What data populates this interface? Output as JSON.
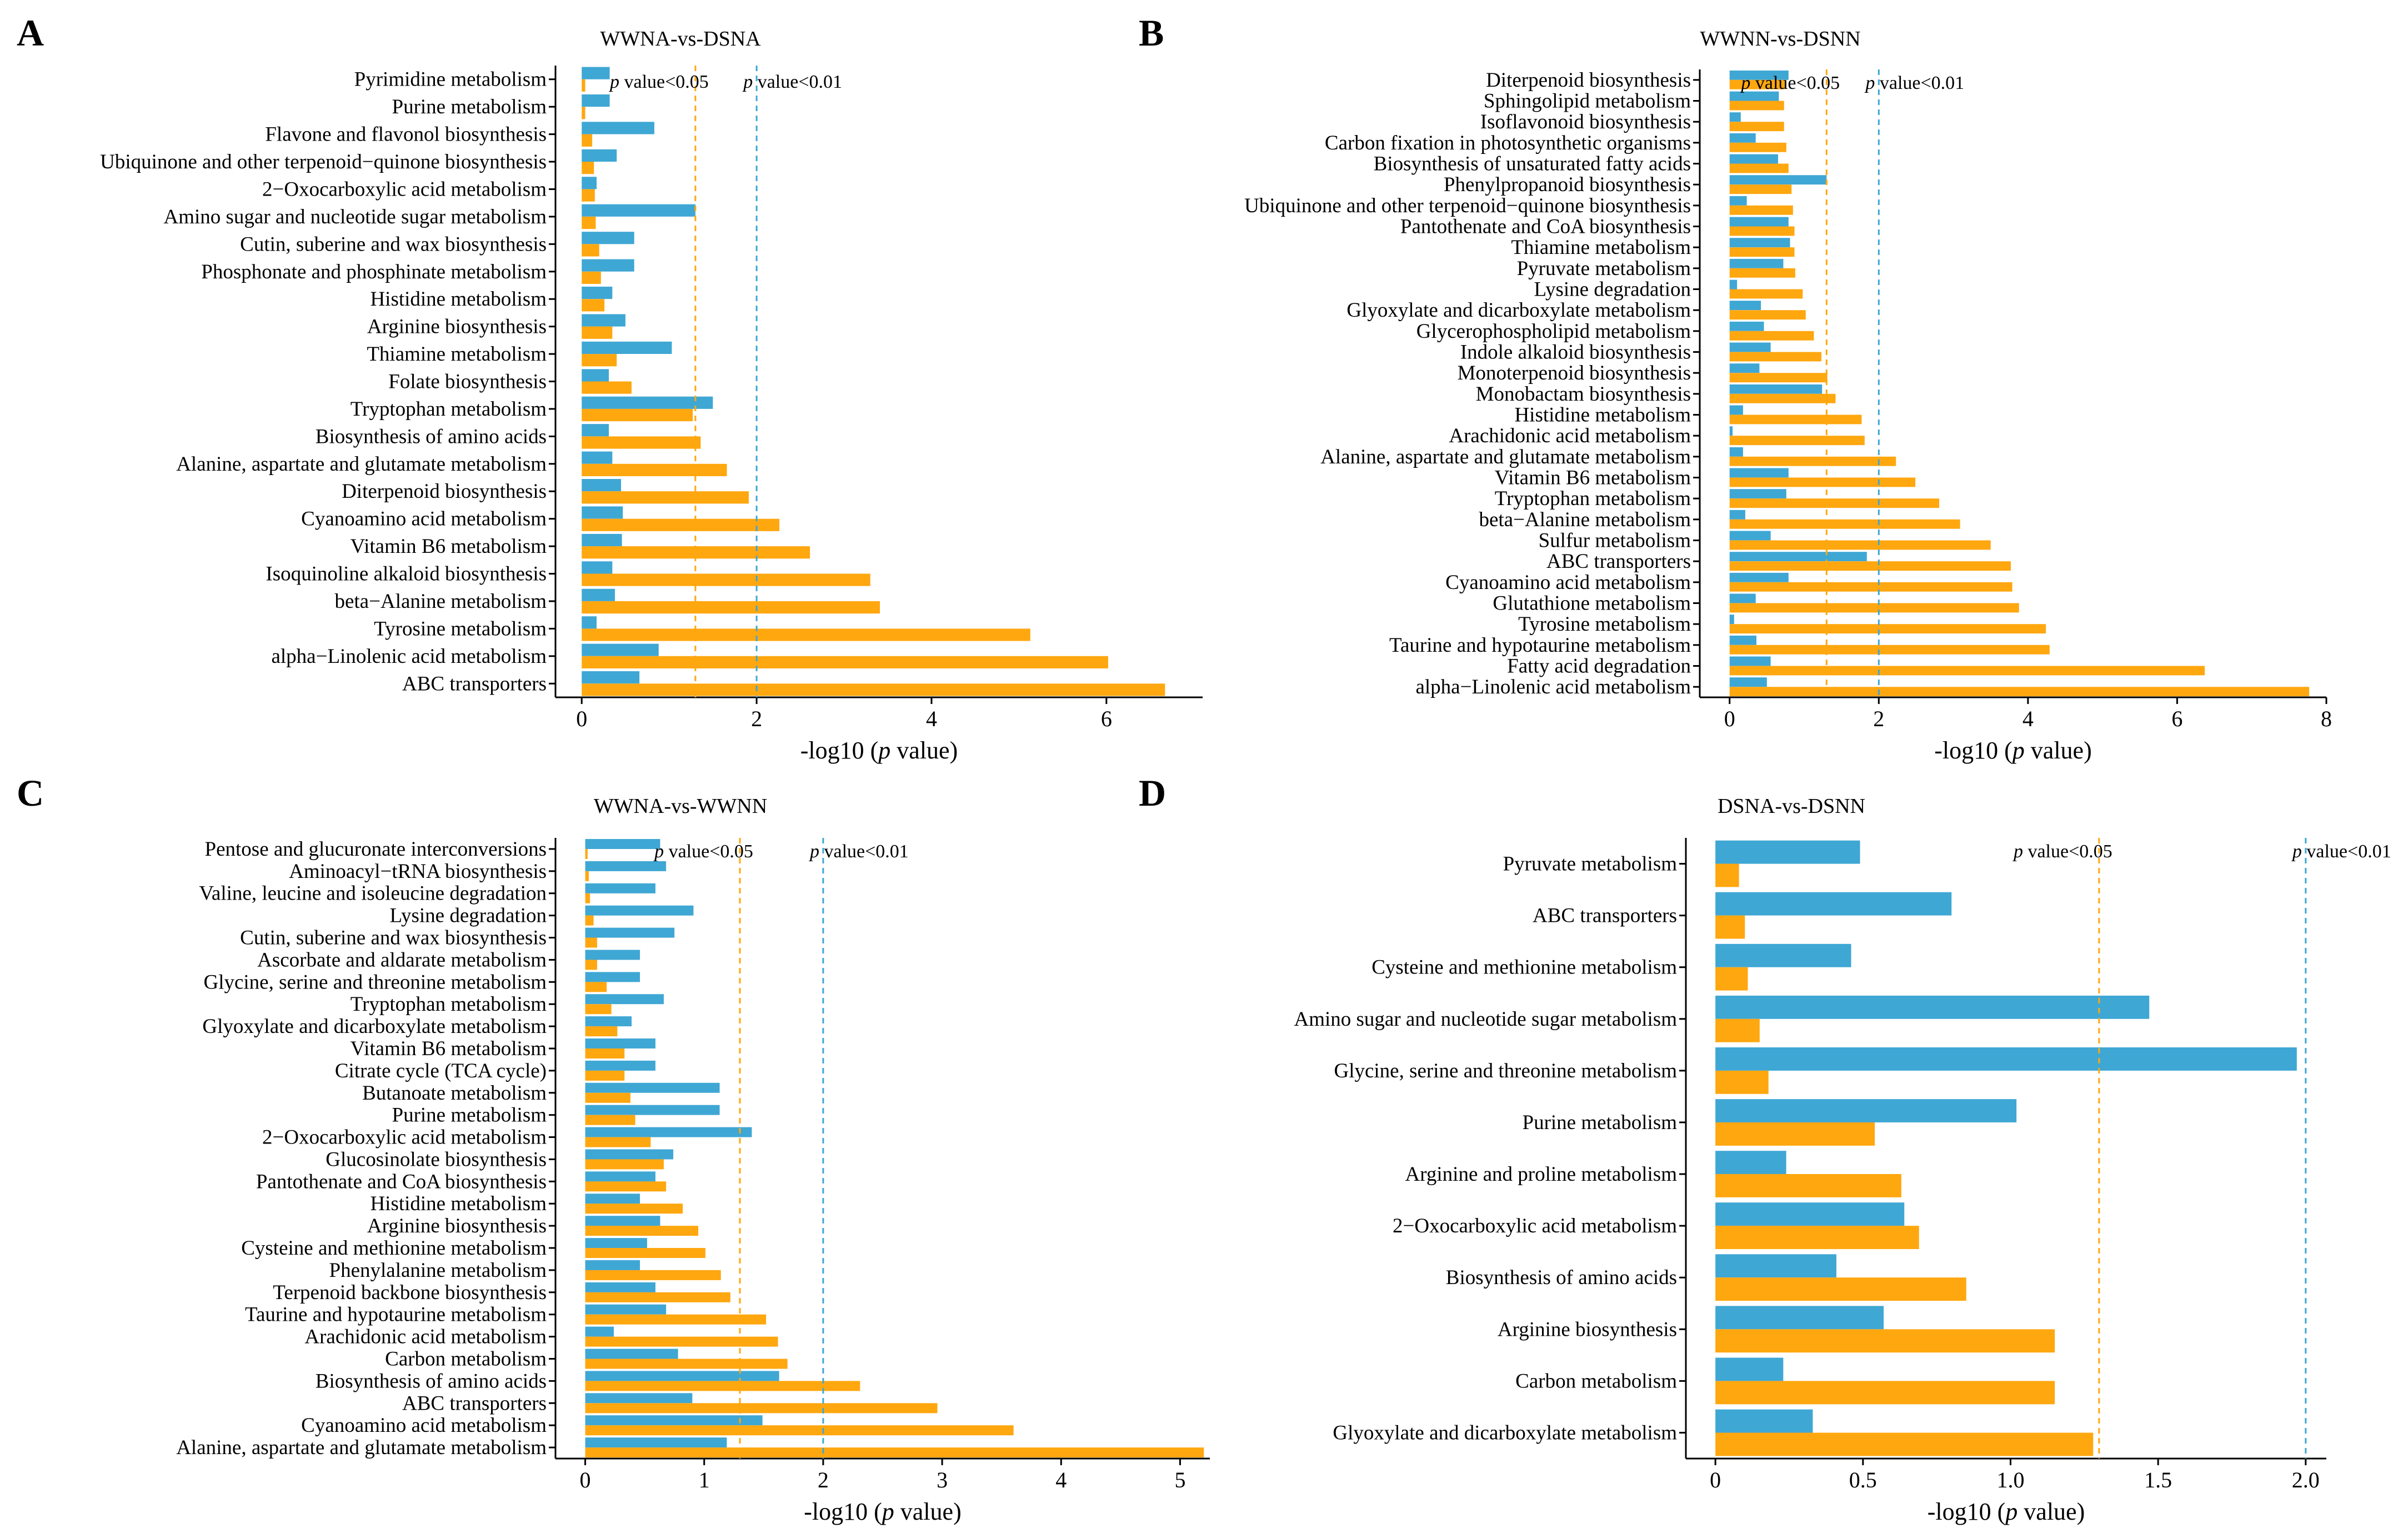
{
  "colors": {
    "blue": "#3fa7d4",
    "orange": "#ffa70f",
    "axis": "#000000"
  },
  "chart_data": [
    {
      "panel": "A",
      "type": "bar",
      "orientation": "horizontal",
      "title": "WWNA-vs-DSNA",
      "xlabel": "-log10 (p value)",
      "xlabel_prefix": "-log10 (",
      "xlabel_italic": "p",
      "xlabel_suffix": " value)",
      "xlim": [
        -0.3,
        7.1
      ],
      "xticks": [
        0,
        2,
        4,
        6
      ],
      "xtick_labels": [
        "0",
        "2",
        "4",
        "6"
      ],
      "ref_lines": [
        {
          "value": 1.3,
          "color": "#ffa70f",
          "label_p": "p",
          "label_rest": " value<0.05"
        },
        {
          "value": 2.0,
          "color": "#3fa7d4",
          "label_p": "p",
          "label_rest": " value<0.01"
        }
      ],
      "categories": [
        "Pyrimidine metabolism",
        "Purine metabolism",
        "Flavone and flavonol biosynthesis",
        "Ubiquinone and other terpenoid−quinone biosynthesis",
        "2−Oxocarboxylic acid metabolism",
        "Amino sugar and nucleotide sugar metabolism",
        "Cutin, suberine and wax biosynthesis",
        "Phosphonate and phosphinate metabolism",
        "Histidine metabolism",
        "Arginine biosynthesis",
        "Thiamine metabolism",
        "Folate biosynthesis",
        "Tryptophan metabolism",
        "Biosynthesis of amino acids",
        "Alanine, aspartate and glutamate metabolism",
        "Diterpenoid biosynthesis",
        "Cyanoamino acid metabolism",
        "Vitamin B6 metabolism",
        "Isoquinoline alkaloid biosynthesis",
        "beta−Alanine metabolism",
        "Tyrosine metabolism",
        "alpha−Linolenic acid metabolism",
        "ABC transporters"
      ],
      "series": [
        {
          "name": "blue",
          "color": "#3fa7d4",
          "values": [
            0.32,
            0.32,
            0.83,
            0.4,
            0.17,
            1.3,
            0.6,
            0.6,
            0.35,
            0.5,
            1.03,
            0.31,
            1.5,
            0.31,
            0.35,
            0.45,
            0.47,
            0.46,
            0.35,
            0.38,
            0.17,
            0.88,
            0.66
          ]
        },
        {
          "name": "orange",
          "color": "#ffa70f",
          "values": [
            0.04,
            0.04,
            0.12,
            0.14,
            0.15,
            0.16,
            0.2,
            0.22,
            0.26,
            0.35,
            0.4,
            0.57,
            1.27,
            1.36,
            1.66,
            1.91,
            2.26,
            2.61,
            3.3,
            3.41,
            5.13,
            6.02,
            6.67
          ]
        }
      ]
    },
    {
      "panel": "B",
      "type": "bar",
      "orientation": "horizontal",
      "title": "WWNN-vs-DSNN",
      "xlabel": "-log10 (p value)",
      "xlabel_prefix": "-log10 (",
      "xlabel_italic": "p",
      "xlabel_suffix": " value)",
      "xlim": [
        -0.4,
        8.0
      ],
      "xticks": [
        0,
        2,
        4,
        6,
        8
      ],
      "xtick_labels": [
        "0",
        "2",
        "4",
        "6",
        "8"
      ],
      "ref_lines": [
        {
          "value": 1.3,
          "color": "#ffa70f",
          "label_p": "p",
          "label_rest": " value<0.05"
        },
        {
          "value": 2.0,
          "color": "#3fa7d4",
          "label_p": "p",
          "label_rest": " value<0.01"
        }
      ],
      "categories": [
        "Diterpenoid biosynthesis",
        "Sphingolipid metabolism",
        "Isoflavonoid biosynthesis",
        "Carbon fixation in photosynthetic organisms",
        "Biosynthesis of unsaturated fatty acids",
        "Phenylpropanoid biosynthesis",
        "Ubiquinone and other terpenoid−quinone biosynthesis",
        "Pantothenate and CoA biosynthesis",
        "Thiamine metabolism",
        "Pyruvate metabolism",
        "Lysine degradation",
        "Glyoxylate and dicarboxylate metabolism",
        "Glycerophospholipid metabolism",
        "Indole alkaloid biosynthesis",
        "Monoterpenoid biosynthesis",
        "Monobactam biosynthesis",
        "Histidine metabolism",
        "Arachidonic acid metabolism",
        "Alanine, aspartate and glutamate metabolism",
        "Vitamin B6 metabolism",
        "Tryptophan metabolism",
        "beta−Alanine metabolism",
        "Sulfur metabolism",
        "ABC transporters",
        "Cyanoamino acid metabolism",
        "Glutathione metabolism",
        "Tyrosine metabolism",
        "Taurine and hypotaurine metabolism",
        "Fatty acid degradation",
        "alpha−Linolenic acid metabolism"
      ],
      "series": [
        {
          "name": "blue",
          "color": "#3fa7d4",
          "values": [
            0.79,
            0.66,
            0.15,
            0.35,
            0.65,
            1.3,
            0.23,
            0.79,
            0.81,
            0.72,
            0.1,
            0.42,
            0.46,
            0.55,
            0.4,
            1.24,
            0.18,
            0.04,
            0.18,
            0.79,
            0.76,
            0.21,
            0.55,
            1.84,
            0.79,
            0.35,
            0.06,
            0.36,
            0.55,
            0.5
          ]
        },
        {
          "name": "orange",
          "color": "#ffa70f",
          "values": [
            0.74,
            0.73,
            0.73,
            0.76,
            0.79,
            0.83,
            0.85,
            0.87,
            0.87,
            0.88,
            0.98,
            1.02,
            1.13,
            1.23,
            1.31,
            1.42,
            1.77,
            1.81,
            2.23,
            2.49,
            2.81,
            3.09,
            3.5,
            3.77,
            3.79,
            3.88,
            4.24,
            4.29,
            6.37,
            7.77
          ]
        }
      ]
    },
    {
      "panel": "C",
      "type": "bar",
      "orientation": "horizontal",
      "title": "WWNA-vs-WWNN",
      "xlabel": "-log10 (p value)",
      "xlabel_prefix": "-log10 (",
      "xlabel_italic": "p",
      "xlabel_suffix": " value)",
      "xlim": [
        -0.25,
        5.25
      ],
      "xticks": [
        0,
        1,
        2,
        3,
        4,
        5
      ],
      "xtick_labels": [
        "0",
        "1",
        "2",
        "3",
        "4",
        "5"
      ],
      "ref_lines": [
        {
          "value": 1.3,
          "color": "#ffa70f",
          "label_p": "p",
          "label_rest": " value<0.05"
        },
        {
          "value": 2.0,
          "color": "#3fa7d4",
          "label_p": "p",
          "label_rest": " value<0.01"
        }
      ],
      "categories": [
        "Pentose and glucuronate interconversions",
        "Aminoacyl−tRNA biosynthesis",
        "Valine, leucine and isoleucine degradation",
        "Lysine degradation",
        "Cutin, suberine and wax biosynthesis",
        "Ascorbate and aldarate metabolism",
        "Glycine, serine and threonine metabolism",
        "Tryptophan metabolism",
        "Glyoxylate and dicarboxylate metabolism",
        "Vitamin B6 metabolism",
        "Citrate cycle (TCA cycle)",
        "Butanoate metabolism",
        "Purine metabolism",
        "2−Oxocarboxylic acid metabolism",
        "Glucosinolate biosynthesis",
        "Pantothenate and CoA biosynthesis",
        "Histidine metabolism",
        "Arginine biosynthesis",
        "Cysteine and methionine metabolism",
        "Phenylalanine metabolism",
        "Terpenoid backbone biosynthesis",
        "Taurine and hypotaurine metabolism",
        "Arachidonic acid metabolism",
        "Carbon metabolism",
        "Biosynthesis of amino acids",
        "ABC transporters",
        "Cyanoamino acid metabolism",
        "Alanine, aspartate and glutamate metabolism"
      ],
      "series": [
        {
          "name": "blue",
          "color": "#3fa7d4",
          "values": [
            0.63,
            0.68,
            0.59,
            0.91,
            0.75,
            0.46,
            0.46,
            0.66,
            0.39,
            0.59,
            0.59,
            1.13,
            1.13,
            1.4,
            0.74,
            0.59,
            0.46,
            0.63,
            0.52,
            0.46,
            0.59,
            0.68,
            0.24,
            0.78,
            1.63,
            0.9,
            1.49,
            1.19
          ]
        },
        {
          "name": "orange",
          "color": "#ffa70f",
          "values": [
            0.02,
            0.03,
            0.04,
            0.07,
            0.1,
            0.1,
            0.18,
            0.22,
            0.27,
            0.33,
            0.33,
            0.38,
            0.42,
            0.55,
            0.66,
            0.68,
            0.82,
            0.95,
            1.01,
            1.14,
            1.22,
            1.52,
            1.62,
            1.7,
            2.31,
            2.96,
            3.6,
            5.2
          ]
        }
      ]
    },
    {
      "panel": "D",
      "type": "bar",
      "orientation": "horizontal",
      "title": "DSNA-vs-DSNN",
      "xlabel": "-log10 (p value)",
      "xlabel_prefix": "-log10 (",
      "xlabel_italic": "p",
      "xlabel_suffix": " value)",
      "xlim": [
        -0.1,
        2.07
      ],
      "xticks": [
        0,
        0.5,
        1.0,
        1.5,
        2.0
      ],
      "xtick_labels": [
        "0",
        "0.5",
        "1.0",
        "1.5",
        "2.0"
      ],
      "ref_lines": [
        {
          "value": 1.3,
          "color": "#ffa70f",
          "label_p": "p",
          "label_rest": " value<0.05"
        },
        {
          "value": 2.0,
          "color": "#3fa7d4",
          "label_p": "p",
          "label_rest": " value<0.01"
        }
      ],
      "categories": [
        "Pyruvate metabolism",
        "ABC transporters",
        "Cysteine and methionine metabolism",
        "Amino sugar and nucleotide sugar metabolism",
        "Glycine, serine and threonine metabolism",
        "Purine metabolism",
        "Arginine and proline metabolism",
        "2−Oxocarboxylic acid metabolism",
        "Biosynthesis of amino acids",
        "Arginine biosynthesis",
        "Carbon metabolism",
        "Glyoxylate and dicarboxylate metabolism"
      ],
      "series": [
        {
          "name": "blue",
          "color": "#3fa7d4",
          "values": [
            0.49,
            0.8,
            0.46,
            1.47,
            1.97,
            1.02,
            0.24,
            0.64,
            0.41,
            0.57,
            0.23,
            0.33
          ]
        },
        {
          "name": "orange",
          "color": "#ffa70f",
          "values": [
            0.08,
            0.1,
            0.11,
            0.15,
            0.18,
            0.54,
            0.63,
            0.69,
            0.85,
            1.15,
            1.15,
            1.28
          ]
        }
      ]
    }
  ]
}
